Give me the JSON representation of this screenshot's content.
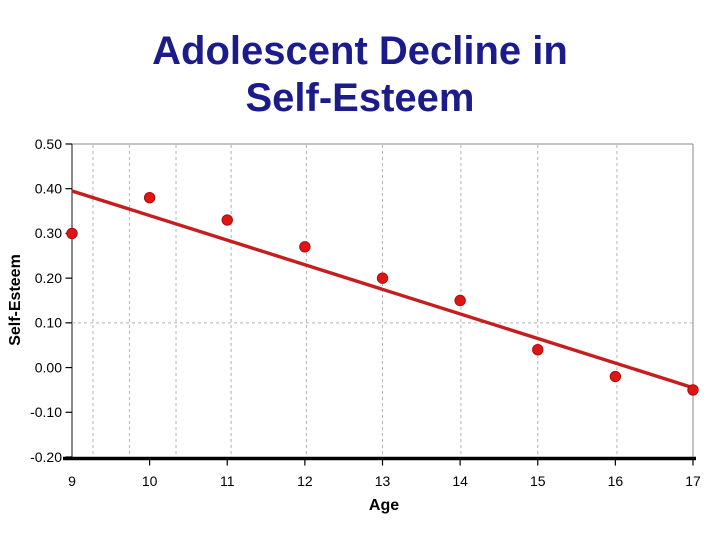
{
  "title": {
    "line1": "Adolescent Decline in",
    "line2": "Self-Esteem"
  },
  "colors": {
    "title": "#1b1b8c",
    "point_fill": "#e11414",
    "point_edge": "#a50f0f",
    "trend_line": "#c41e1e",
    "gridline": "#b3b3b3",
    "frame": "#8a8a8a",
    "axis_line": "#3c3c3c",
    "baseline": "#000000",
    "text": "#000000",
    "background": "#ffffff"
  },
  "chart_data": {
    "type": "scatter",
    "title": "Adolescent Decline in Self-Esteem",
    "xlabel": "Age",
    "ylabel": "Self-Esteem",
    "x": [
      9,
      10,
      11,
      12,
      13,
      14,
      15,
      16,
      17
    ],
    "values": [
      0.3,
      0.38,
      0.33,
      0.27,
      0.2,
      0.15,
      0.04,
      -0.02,
      -0.05
    ],
    "trendline": {
      "x1": 9,
      "y1": 0.395,
      "x2": 17,
      "y2": -0.045
    },
    "xlim": [
      9,
      17
    ],
    "ylim": [
      -0.2,
      0.5
    ],
    "x_ticks": [
      9,
      10,
      11,
      12,
      13,
      14,
      15,
      16,
      17
    ],
    "x_tick_labels": [
      "9",
      "10",
      "11",
      "12",
      "13",
      "14",
      "15",
      "16",
      "17"
    ],
    "x_minor_tick_marks": [
      10,
      11,
      12,
      13,
      14,
      15,
      16,
      17
    ],
    "y_ticks": [
      0.5,
      0.4,
      0.3,
      0.2,
      0.1,
      0.0,
      -0.1,
      -0.2
    ],
    "y_tick_labels": [
      "0.50",
      "0.40",
      "0.30",
      "0.20",
      "0.10",
      "0.00",
      "-0.10",
      "-0.20"
    ],
    "x_gridlines": [
      9.27,
      9.74,
      10.34,
      11.05,
      12.02,
      13.0,
      14.01,
      15.0,
      16.02
    ],
    "y_gridlines": [
      0.1
    ],
    "grid_style": "dashed",
    "legend": "none"
  }
}
